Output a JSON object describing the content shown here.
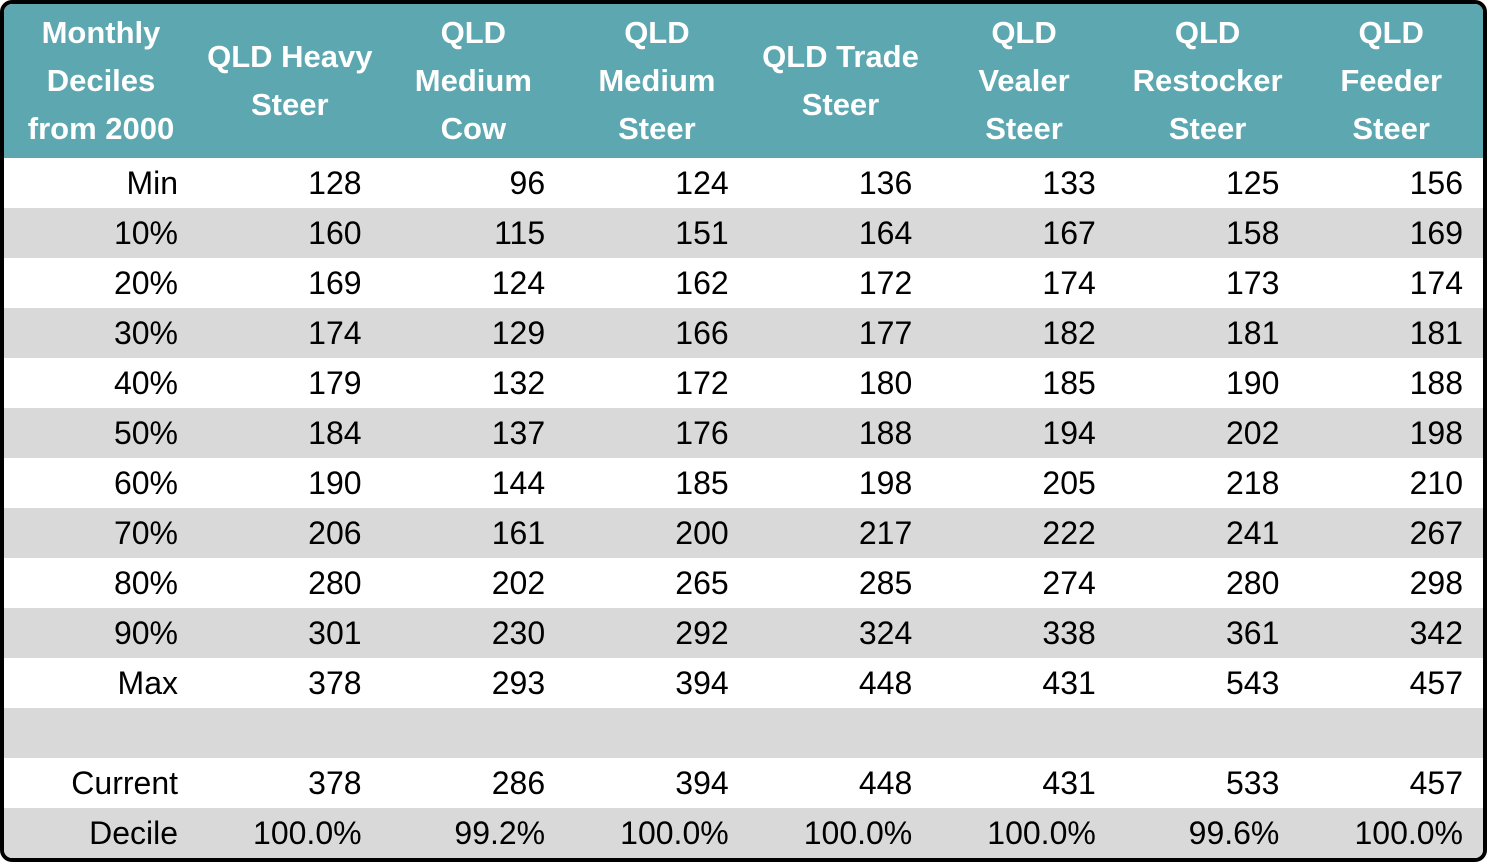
{
  "colors": {
    "header_bg": "#5DA7B0",
    "header_text": "#FFFFFF",
    "stripe_bg": "#D9D9D9",
    "row_bg": "#FFFFFF",
    "body_text": "#000000",
    "border": "#000000"
  },
  "table": {
    "corner_header": "Monthly\nDeciles\nfrom 2000",
    "column_headers": [
      "QLD Heavy\nSteer",
      "QLD\nMedium\nCow",
      "QLD\nMedium\nSteer",
      "QLD Trade\nSteer",
      "QLD\nVealer\nSteer",
      "QLD\nRestocker\nSteer",
      "QLD\nFeeder\nSteer"
    ],
    "rows": [
      {
        "label": "Min",
        "values": [
          "128",
          "96",
          "124",
          "136",
          "133",
          "125",
          "156"
        ],
        "shade": false
      },
      {
        "label": "10%",
        "values": [
          "160",
          "115",
          "151",
          "164",
          "167",
          "158",
          "169"
        ],
        "shade": true
      },
      {
        "label": "20%",
        "values": [
          "169",
          "124",
          "162",
          "172",
          "174",
          "173",
          "174"
        ],
        "shade": false
      },
      {
        "label": "30%",
        "values": [
          "174",
          "129",
          "166",
          "177",
          "182",
          "181",
          "181"
        ],
        "shade": true
      },
      {
        "label": "40%",
        "values": [
          "179",
          "132",
          "172",
          "180",
          "185",
          "190",
          "188"
        ],
        "shade": false
      },
      {
        "label": "50%",
        "values": [
          "184",
          "137",
          "176",
          "188",
          "194",
          "202",
          "198"
        ],
        "shade": true
      },
      {
        "label": "60%",
        "values": [
          "190",
          "144",
          "185",
          "198",
          "205",
          "218",
          "210"
        ],
        "shade": false
      },
      {
        "label": "70%",
        "values": [
          "206",
          "161",
          "200",
          "217",
          "222",
          "241",
          "267"
        ],
        "shade": true
      },
      {
        "label": "80%",
        "values": [
          "280",
          "202",
          "265",
          "285",
          "274",
          "280",
          "298"
        ],
        "shade": false
      },
      {
        "label": "90%",
        "values": [
          "301",
          "230",
          "292",
          "324",
          "338",
          "361",
          "342"
        ],
        "shade": true
      },
      {
        "label": "Max",
        "values": [
          "378",
          "293",
          "394",
          "448",
          "431",
          "543",
          "457"
        ],
        "shade": false
      },
      {
        "label": "",
        "values": [
          "",
          "",
          "",
          "",
          "",
          "",
          ""
        ],
        "shade": true
      },
      {
        "label": "Current",
        "values": [
          "378",
          "286",
          "394",
          "448",
          "431",
          "533",
          "457"
        ],
        "shade": false
      },
      {
        "label": "Decile",
        "values": [
          "100.0%",
          "99.2%",
          "100.0%",
          "100.0%",
          "100.0%",
          "99.6%",
          "100.0%"
        ],
        "shade": true
      }
    ]
  },
  "chart_data": {
    "type": "table",
    "title": "Monthly Deciles from 2000",
    "columns": [
      "Monthly Deciles from 2000",
      "QLD Heavy Steer",
      "QLD Medium Cow",
      "QLD Medium Steer",
      "QLD Trade Steer",
      "QLD Vealer Steer",
      "QLD Restocker Steer",
      "QLD Feeder Steer"
    ],
    "rows": [
      [
        "Min",
        128,
        96,
        124,
        136,
        133,
        125,
        156
      ],
      [
        "10%",
        160,
        115,
        151,
        164,
        167,
        158,
        169
      ],
      [
        "20%",
        169,
        124,
        162,
        172,
        174,
        173,
        174
      ],
      [
        "30%",
        174,
        129,
        166,
        177,
        182,
        181,
        181
      ],
      [
        "40%",
        179,
        132,
        172,
        180,
        185,
        190,
        188
      ],
      [
        "50%",
        184,
        137,
        176,
        188,
        194,
        202,
        198
      ],
      [
        "60%",
        190,
        144,
        185,
        198,
        205,
        218,
        210
      ],
      [
        "70%",
        206,
        161,
        200,
        217,
        222,
        241,
        267
      ],
      [
        "80%",
        280,
        202,
        265,
        285,
        274,
        280,
        298
      ],
      [
        "90%",
        301,
        230,
        292,
        324,
        338,
        361,
        342
      ],
      [
        "Max",
        378,
        293,
        394,
        448,
        431,
        543,
        457
      ],
      [
        "",
        "",
        "",
        "",
        "",
        "",
        "",
        ""
      ],
      [
        "Current",
        378,
        286,
        394,
        448,
        431,
        533,
        457
      ],
      [
        "Decile",
        "100.0%",
        "99.2%",
        "100.0%",
        "100.0%",
        "100.0%",
        "99.6%",
        "100.0%"
      ]
    ],
    "layout": {
      "striped": true,
      "header_fill": "#5DA7B0",
      "stripe_fill": "#D9D9D9",
      "value_alignment": "right"
    }
  }
}
